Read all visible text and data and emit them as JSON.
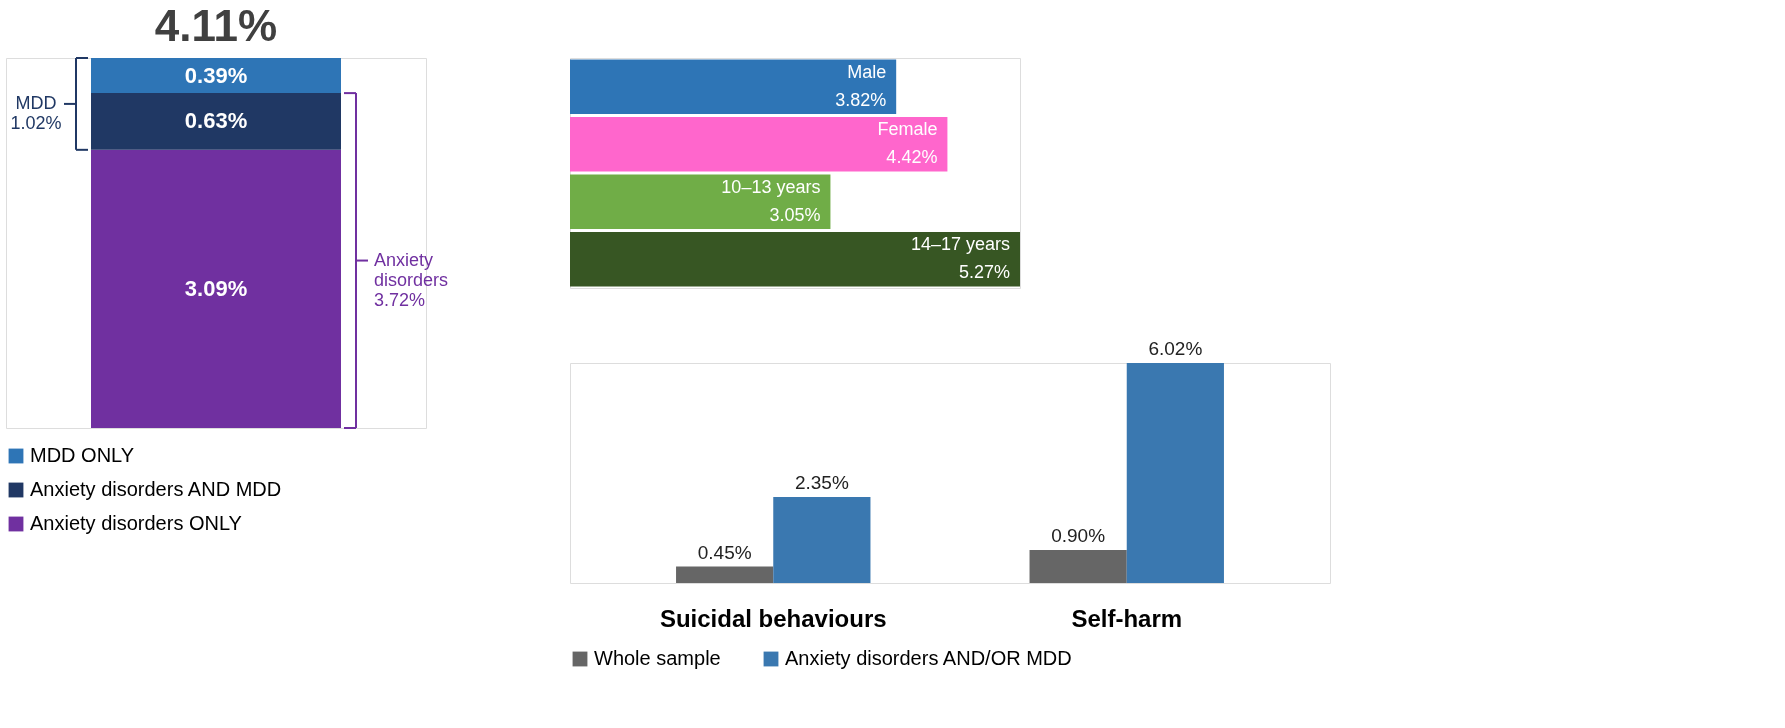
{
  "chart_data": [
    {
      "type": "bar",
      "stacked": true,
      "categories": [
        null
      ],
      "series": [
        {
          "name": "Anxiety disorders ONLY",
          "color": "#7030a0",
          "values": [
            3.09
          ],
          "value_labels": [
            "3.09%"
          ]
        },
        {
          "name": "Anxiety disorders AND MDD",
          "color": "#203864",
          "values": [
            0.63
          ],
          "value_labels": [
            "0.63%"
          ]
        },
        {
          "name": "MDD ONLY",
          "color": "#2e75b6",
          "values": [
            0.39
          ],
          "value_labels": [
            "0.39%"
          ]
        }
      ],
      "totals": [
        "4.11%"
      ],
      "annotations": [
        "MDD\n1.02%",
        "Anxiety\ndisorders\n3.72%"
      ],
      "legend": "bottom"
    },
    {
      "type": "bar",
      "orientation": "horizontal",
      "categories": [
        "Male",
        "Female",
        "10–13 years",
        "14–17 years"
      ],
      "values": [
        3.82,
        4.42,
        3.05,
        5.27
      ],
      "colors": [
        "#2e75b6",
        "#ff66cc",
        "#70ad47",
        "#375623"
      ],
      "value_labels": [
        "3.82%",
        "4.42%",
        "3.05%",
        "5.27%"
      ]
    },
    {
      "type": "bar",
      "categories": [
        "Suicidal behaviours",
        "Self-harm"
      ],
      "series": [
        {
          "name": "Whole sample",
          "color": "#666666",
          "values": [
            0.45,
            0.9
          ],
          "value_labels": [
            "0.45%",
            "0.90%"
          ]
        },
        {
          "name": "Anxiety disorders AND/OR MDD",
          "color": "#3a78b0",
          "values": [
            2.35,
            6.02
          ],
          "value_labels": [
            "2.35%",
            "6.02%"
          ]
        }
      ],
      "legend": "bottom"
    }
  ]
}
